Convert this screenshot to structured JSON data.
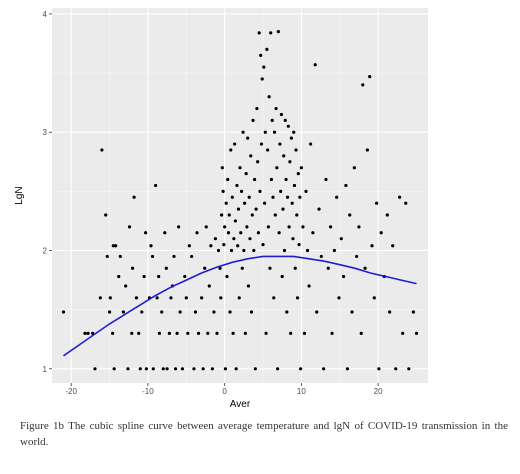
{
  "chart_data": {
    "type": "scatter",
    "xlabel": "Aver",
    "ylabel": "LgN",
    "xlim": [
      -22.5,
      26.5
    ],
    "ylim": [
      0.88,
      4.05
    ],
    "x_ticks": [
      -20,
      -10,
      0,
      10,
      20
    ],
    "y_ticks": [
      1,
      2,
      3,
      4
    ],
    "grid": true,
    "background": "#ebebeb",
    "point_color": "#000000",
    "curve_color": "#1f1fcf",
    "points": [
      [
        -21.0,
        1.48
      ],
      [
        -18.2,
        1.3
      ],
      [
        -17.8,
        1.3
      ],
      [
        -17.2,
        1.3
      ],
      [
        -16.9,
        1.0
      ],
      [
        -16.2,
        1.6
      ],
      [
        -16.0,
        2.85
      ],
      [
        -15.5,
        2.3
      ],
      [
        -15.3,
        1.95
      ],
      [
        -15.0,
        1.48
      ],
      [
        -14.9,
        1.6
      ],
      [
        -14.6,
        1.3
      ],
      [
        -14.5,
        2.04
      ],
      [
        -14.4,
        1.0
      ],
      [
        -14.2,
        2.04
      ],
      [
        -13.8,
        1.78
      ],
      [
        -13.6,
        1.95
      ],
      [
        -13.2,
        1.48
      ],
      [
        -12.9,
        1.7
      ],
      [
        -12.6,
        1.0
      ],
      [
        -12.4,
        2.2
      ],
      [
        -12.1,
        1.3
      ],
      [
        -12.0,
        1.85
      ],
      [
        -11.8,
        2.45
      ],
      [
        -11.5,
        1.6
      ],
      [
        -11.2,
        1.3
      ],
      [
        -11.0,
        1.0
      ],
      [
        -10.8,
        1.48
      ],
      [
        -10.5,
        1.78
      ],
      [
        -10.3,
        2.15
      ],
      [
        -10.2,
        1.0
      ],
      [
        -9.8,
        1.6
      ],
      [
        -9.6,
        2.04
      ],
      [
        -9.4,
        1.95
      ],
      [
        -9.3,
        1.0
      ],
      [
        -9.0,
        2.55
      ],
      [
        -8.8,
        1.6
      ],
      [
        -8.6,
        1.78
      ],
      [
        -8.5,
        1.3
      ],
      [
        -8.2,
        1.48
      ],
      [
        -8.0,
        1.0
      ],
      [
        -7.8,
        2.15
      ],
      [
        -7.6,
        1.85
      ],
      [
        -7.5,
        1.0
      ],
      [
        -7.2,
        1.3
      ],
      [
        -7.0,
        1.6
      ],
      [
        -6.8,
        1.7
      ],
      [
        -6.6,
        1.95
      ],
      [
        -6.4,
        1.0
      ],
      [
        -6.2,
        1.3
      ],
      [
        -6.0,
        2.2
      ],
      [
        -5.8,
        1.48
      ],
      [
        -5.5,
        1.0
      ],
      [
        -5.2,
        1.78
      ],
      [
        -5.0,
        1.6
      ],
      [
        -4.8,
        1.3
      ],
      [
        -4.6,
        2.04
      ],
      [
        -4.3,
        1.95
      ],
      [
        -4.0,
        1.0
      ],
      [
        -3.8,
        1.48
      ],
      [
        -3.6,
        2.15
      ],
      [
        -3.4,
        1.3
      ],
      [
        -3.0,
        1.6
      ],
      [
        -2.8,
        1.0
      ],
      [
        -2.6,
        1.85
      ],
      [
        -2.4,
        2.2
      ],
      [
        -2.2,
        1.3
      ],
      [
        -2.0,
        1.7
      ],
      [
        -1.8,
        2.04
      ],
      [
        -1.6,
        1.0
      ],
      [
        -1.4,
        1.48
      ],
      [
        -1.2,
        2.1
      ],
      [
        -1.0,
        1.3
      ],
      [
        -0.8,
        2.0
      ],
      [
        -0.6,
        1.85
      ],
      [
        -0.5,
        1.6
      ],
      [
        -0.4,
        2.3
      ],
      [
        -0.3,
        2.7
      ],
      [
        -0.2,
        2.5
      ],
      [
        -0.1,
        2.05
      ],
      [
        0.0,
        2.2
      ],
      [
        0.1,
        1.0
      ],
      [
        0.2,
        2.4
      ],
      [
        0.3,
        1.78
      ],
      [
        0.4,
        2.6
      ],
      [
        0.5,
        2.15
      ],
      [
        0.6,
        2.3
      ],
      [
        0.7,
        1.48
      ],
      [
        0.8,
        2.85
      ],
      [
        0.9,
        2.0
      ],
      [
        1.0,
        2.45
      ],
      [
        1.1,
        1.3
      ],
      [
        1.2,
        2.1
      ],
      [
        1.3,
        2.9
      ],
      [
        1.4,
        2.25
      ],
      [
        1.5,
        1.0
      ],
      [
        1.6,
        2.55
      ],
      [
        1.7,
        2.04
      ],
      [
        1.8,
        2.35
      ],
      [
        1.9,
        1.6
      ],
      [
        2.0,
        2.7
      ],
      [
        2.1,
        2.15
      ],
      [
        2.2,
        2.5
      ],
      [
        2.3,
        1.85
      ],
      [
        2.4,
        3.0
      ],
      [
        2.5,
        2.0
      ],
      [
        2.6,
        2.4
      ],
      [
        2.7,
        1.3
      ],
      [
        2.8,
        2.65
      ],
      [
        2.9,
        2.2
      ],
      [
        3.0,
        2.95
      ],
      [
        3.1,
        1.7
      ],
      [
        3.2,
        2.45
      ],
      [
        3.3,
        2.1
      ],
      [
        3.4,
        2.8
      ],
      [
        3.5,
        1.48
      ],
      [
        3.6,
        2.3
      ],
      [
        3.7,
        3.1
      ],
      [
        3.8,
        2.0
      ],
      [
        3.9,
        2.6
      ],
      [
        4.0,
        1.0
      ],
      [
        4.1,
        2.35
      ],
      [
        4.2,
        3.2
      ],
      [
        4.3,
        2.75
      ],
      [
        4.4,
        2.15
      ],
      [
        4.5,
        3.84
      ],
      [
        4.6,
        2.5
      ],
      [
        4.7,
        3.65
      ],
      [
        4.8,
        2.9
      ],
      [
        4.9,
        3.45
      ],
      [
        5.0,
        2.05
      ],
      [
        5.1,
        3.55
      ],
      [
        5.2,
        2.4
      ],
      [
        5.3,
        3.0
      ],
      [
        5.4,
        1.3
      ],
      [
        5.5,
        3.7
      ],
      [
        5.6,
        2.85
      ],
      [
        5.7,
        2.2
      ],
      [
        5.8,
        3.3
      ],
      [
        5.9,
        1.85
      ],
      [
        6.0,
        3.84
      ],
      [
        6.1,
        2.6
      ],
      [
        6.2,
        3.1
      ],
      [
        6.3,
        2.45
      ],
      [
        6.4,
        1.6
      ],
      [
        6.5,
        3.0
      ],
      [
        6.6,
        2.3
      ],
      [
        6.7,
        3.2
      ],
      [
        6.8,
        2.7
      ],
      [
        6.9,
        1.0
      ],
      [
        7.0,
        3.85
      ],
      [
        7.1,
        2.15
      ],
      [
        7.2,
        2.9
      ],
      [
        7.3,
        2.5
      ],
      [
        7.4,
        3.15
      ],
      [
        7.5,
        1.78
      ],
      [
        7.6,
        2.35
      ],
      [
        7.7,
        2.8
      ],
      [
        7.8,
        2.0
      ],
      [
        7.9,
        3.1
      ],
      [
        8.0,
        2.6
      ],
      [
        8.1,
        1.48
      ],
      [
        8.2,
        2.45
      ],
      [
        8.3,
        3.05
      ],
      [
        8.4,
        2.2
      ],
      [
        8.5,
        2.75
      ],
      [
        8.6,
        1.3
      ],
      [
        8.7,
        2.95
      ],
      [
        8.8,
        2.4
      ],
      [
        8.9,
        2.1
      ],
      [
        9.0,
        3.0
      ],
      [
        9.1,
        2.55
      ],
      [
        9.2,
        1.85
      ],
      [
        9.3,
        2.85
      ],
      [
        9.4,
        2.3
      ],
      [
        9.5,
        1.6
      ],
      [
        9.6,
        2.65
      ],
      [
        9.7,
        2.05
      ],
      [
        9.8,
        2.45
      ],
      [
        9.9,
        1.0
      ],
      [
        10.0,
        2.7
      ],
      [
        10.2,
        2.2
      ],
      [
        10.4,
        1.3
      ],
      [
        10.6,
        2.5
      ],
      [
        10.8,
        2.0
      ],
      [
        11.0,
        1.7
      ],
      [
        11.2,
        2.9
      ],
      [
        11.5,
        2.15
      ],
      [
        11.8,
        3.57
      ],
      [
        12.0,
        1.48
      ],
      [
        12.3,
        2.35
      ],
      [
        12.6,
        1.95
      ],
      [
        12.9,
        1.0
      ],
      [
        13.2,
        2.6
      ],
      [
        13.5,
        1.85
      ],
      [
        13.8,
        2.2
      ],
      [
        14.0,
        1.3
      ],
      [
        14.3,
        2.0
      ],
      [
        14.6,
        2.45
      ],
      [
        14.9,
        1.6
      ],
      [
        15.2,
        2.1
      ],
      [
        15.5,
        1.78
      ],
      [
        15.8,
        2.55
      ],
      [
        16.0,
        1.0
      ],
      [
        16.3,
        2.3
      ],
      [
        16.6,
        1.48
      ],
      [
        16.9,
        2.7
      ],
      [
        17.2,
        1.95
      ],
      [
        17.5,
        2.2
      ],
      [
        17.8,
        1.3
      ],
      [
        18.0,
        3.4
      ],
      [
        18.3,
        1.85
      ],
      [
        18.6,
        2.85
      ],
      [
        18.9,
        3.47
      ],
      [
        19.2,
        2.04
      ],
      [
        19.5,
        1.6
      ],
      [
        19.8,
        2.4
      ],
      [
        20.1,
        1.0
      ],
      [
        20.4,
        2.15
      ],
      [
        20.8,
        1.78
      ],
      [
        21.2,
        2.3
      ],
      [
        21.5,
        1.48
      ],
      [
        21.9,
        2.04
      ],
      [
        22.3,
        1.0
      ],
      [
        22.8,
        2.45
      ],
      [
        23.2,
        1.3
      ],
      [
        23.6,
        2.4
      ],
      [
        24.0,
        1.0
      ],
      [
        24.6,
        1.48
      ],
      [
        25.0,
        1.3
      ]
    ],
    "curve": [
      [
        -21.0,
        1.11
      ],
      [
        -19.0,
        1.2
      ],
      [
        -17.0,
        1.29
      ],
      [
        -15.0,
        1.38
      ],
      [
        -13.0,
        1.46
      ],
      [
        -11.0,
        1.54
      ],
      [
        -9.0,
        1.62
      ],
      [
        -7.0,
        1.69
      ],
      [
        -5.0,
        1.75
      ],
      [
        -3.0,
        1.81
      ],
      [
        -1.0,
        1.86
      ],
      [
        1.0,
        1.9
      ],
      [
        3.0,
        1.93
      ],
      [
        5.0,
        1.95
      ],
      [
        7.0,
        1.95
      ],
      [
        9.0,
        1.95
      ],
      [
        11.0,
        1.93
      ],
      [
        13.0,
        1.91
      ],
      [
        15.0,
        1.88
      ],
      [
        17.0,
        1.85
      ],
      [
        19.0,
        1.81
      ],
      [
        21.0,
        1.78
      ],
      [
        23.0,
        1.75
      ],
      [
        25.0,
        1.72
      ]
    ]
  },
  "caption": "Figure 1b The cubic spline curve between average temperature and lgN of COVID-19 transmission in the world."
}
